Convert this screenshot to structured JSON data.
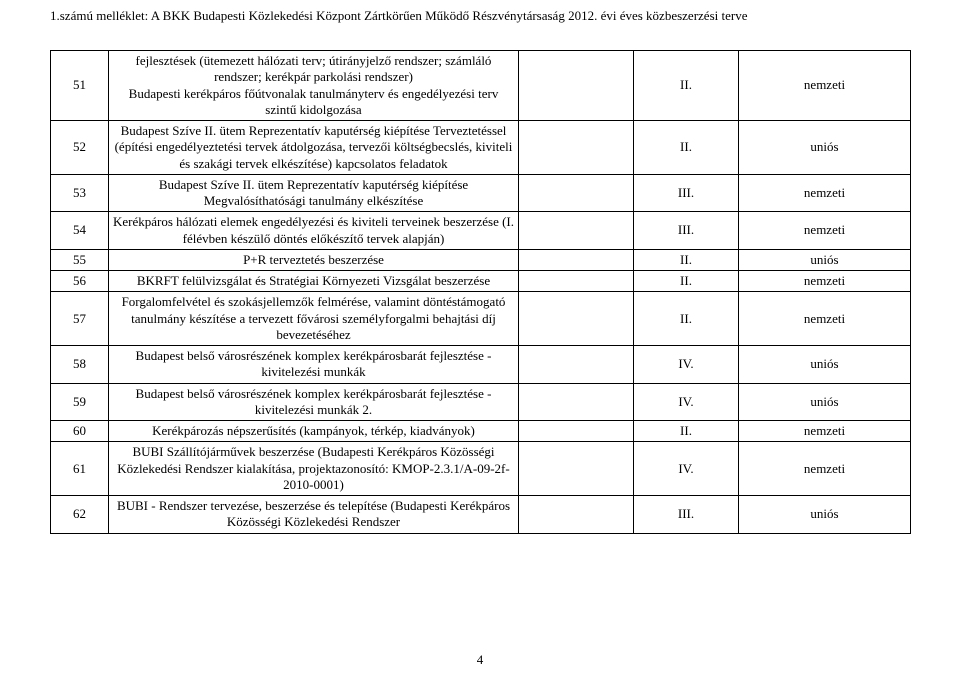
{
  "header_text": "1.számú melléklet:  A BKK Budapesti Közlekedési Központ Zártkörűen Működő Részvénytársaság 2012. évi éves közbeszerzési terve",
  "page_number": "4",
  "rows": [
    {
      "num": "51",
      "desc": "fejlesztések (ütemezett hálózati terv; útirányjelző rendszer; számláló rendszer; kerékpár parkolási rendszer)\nBudapesti kerékpáros főútvonalak tanulmányterv és engedélyezési terv szintű kidolgozása",
      "blank": "",
      "roman": "II.",
      "src": "nemzeti"
    },
    {
      "num": "52",
      "desc": "Budapest Szíve II. ütem Reprezentatív kaputérség kiépítése Terveztetéssel (építési engedélyeztetési tervek átdolgozása, tervezői költségbecslés, kiviteli és szakági tervek elkészítése) kapcsolatos feladatok",
      "blank": "",
      "roman": "II.",
      "src": "uniós"
    },
    {
      "num": "53",
      "desc": "Budapest Szíve II. ütem Reprezentatív kaputérség kiépítése Megvalósíthatósági tanulmány elkészítése",
      "blank": "",
      "roman": "III.",
      "src": "nemzeti"
    },
    {
      "num": "54",
      "desc": "Kerékpáros hálózati elemek engedélyezési és kiviteli terveinek beszerzése (I. félévben készülő döntés előkészítő tervek alapján)",
      "blank": "",
      "roman": "III.",
      "src": "nemzeti"
    },
    {
      "num": "55",
      "desc": "P+R terveztetés beszerzése",
      "blank": "",
      "roman": "II.",
      "src": "uniós"
    },
    {
      "num": "56",
      "desc": "BKRFT felülvizsgálat és Stratégiai Környezeti Vizsgálat beszerzése",
      "blank": "",
      "roman": "II.",
      "src": "nemzeti"
    },
    {
      "num": "57",
      "desc": "Forgalomfelvétel és szokásjellemzők felmérése, valamint döntéstámogató tanulmány készítése a tervezett fővárosi személyforgalmi behajtási díj bevezetéséhez",
      "blank": "",
      "roman": "II.",
      "src": "nemzeti"
    },
    {
      "num": "58",
      "desc": "Budapest belső városrészének komplex kerékpárosbarát fejlesztése  - kivitelezési munkák",
      "blank": "",
      "roman": "IV.",
      "src": "uniós"
    },
    {
      "num": "59",
      "desc": "Budapest belső városrészének komplex kerékpárosbarát fejlesztése  - kivitelezési munkák 2.",
      "blank": "",
      "roman": "IV.",
      "src": "uniós"
    },
    {
      "num": "60",
      "desc": "Kerékpározás népszerűsítés (kampányok, térkép, kiadványok)",
      "blank": "",
      "roman": "II.",
      "src": "nemzeti"
    },
    {
      "num": "61",
      "desc": "BUBI Szállítójárművek beszerzése (Budapesti Kerékpáros Közösségi Közlekedési Rendszer kialakítása, projektazonosító: KMOP-2.3.1/A-09-2f-2010-0001)",
      "blank": "",
      "roman": "IV.",
      "src": "nemzeti"
    },
    {
      "num": "62",
      "desc": "BUBI - Rendszer tervezése, beszerzése és telepítése (Budapesti Kerékpáros Közösségi Közlekedési Rendszer",
      "blank": "",
      "roman": "III.",
      "src": "uniós"
    }
  ]
}
